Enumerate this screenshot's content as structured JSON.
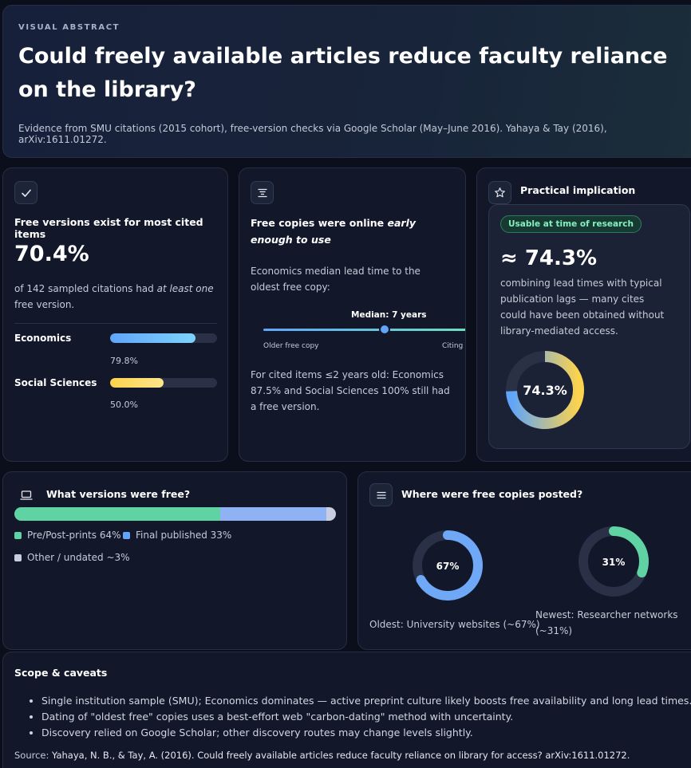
{
  "hero": {
    "eyebrow": "VISUAL ABSTRACT",
    "title": "Could freely available articles reduce faculty reliance on the library?",
    "subtitle": "Evidence from SMU citations (2015 cohort), free-version checks via Google Scholar (May–June 2016). Yahaya & Tay (2016), arXiv:1611.01272."
  },
  "card_exist": {
    "title": "Free versions exist for most cited items",
    "stat": "70.4%",
    "desc_pre": "of 142 sampled citations had ",
    "desc_em": "at least one",
    "desc_post": " free version.",
    "bars": [
      {
        "label": "Economics",
        "value": 79.8,
        "value_text": "79.8%",
        "color_start": "#60a5fa",
        "color_end": "#7dd3fc"
      },
      {
        "label": "Social Sciences",
        "value": 50.0,
        "value_text": "50.0%",
        "color_start": "#fcd34d",
        "color_end": "#fde68a"
      }
    ]
  },
  "card_timing": {
    "title_pre": "Free copies were online ",
    "title_em": "early enough to use",
    "desc": "Economics median lead time to the oldest free copy:",
    "median_label": "Median: 7 years",
    "axis_left": "Older free copy",
    "axis_right": "Citing article",
    "note": "For cited items ≤2 years old: Economics 87.5% and Social Sciences 100% still had a free version."
  },
  "card_impl": {
    "title": "Practical implication",
    "badge": "Usable at time of research",
    "stat": "≈ 74.3%",
    "desc": "combining lead times with typical publication lags — many cites could have been obtained without library-mediated access.",
    "donut_value": 74.3,
    "donut_label": "74.3%"
  },
  "card_versions": {
    "title": "What versions were free?",
    "segments": [
      {
        "label": "Pre/Post-prints 64%",
        "value": 64,
        "color": "#5fd3a4"
      },
      {
        "label": "Final published 33%",
        "value": 33,
        "color": "#8fb2f5"
      },
      {
        "label": "Other / undated ~3%",
        "value": 3,
        "color": "#c9cde0"
      }
    ],
    "legend_colors": [
      "#5fd3a4",
      "#60a5fa",
      "#c9cde0"
    ]
  },
  "card_where": {
    "title": "Where were free copies posted?",
    "rings": [
      {
        "value": 67,
        "label": "67%",
        "caption": "Oldest: University websites (~67%)",
        "color": "#6ea8f7"
      },
      {
        "value": 31,
        "label": "31%",
        "caption": "Newest: Researcher networks (~31%)",
        "color": "#5fd3a4"
      }
    ]
  },
  "caveats": {
    "title": "Scope & caveats",
    "items": [
      "Single institution sample (SMU); Economics dominates — active preprint culture likely boosts free availability and long lead times.",
      "Dating of \"oldest free\" copies uses a best-effort web \"carbon-dating\" method with uncertainty.",
      "Discovery relied on Google Scholar; other discovery routes may change levels slightly."
    ],
    "source_label": "Source:",
    "source_text": "Yahaya, N. B., & Tay, A. (2016). Could freely available articles reduce faculty reliance on library for access? arXiv:1611.01272."
  }
}
